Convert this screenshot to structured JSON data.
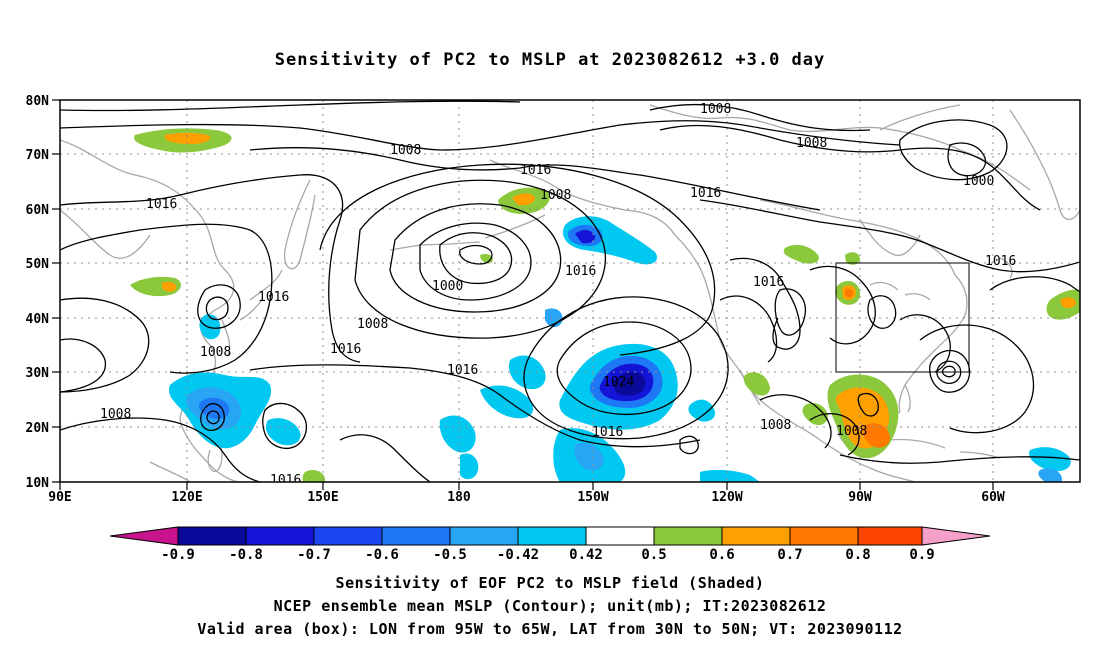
{
  "title": "Sensitivity of PC2 to MSLP at 2023082612 +3.0 day",
  "map": {
    "lat_labels": [
      "80N",
      "70N",
      "60N",
      "50N",
      "40N",
      "30N",
      "20N",
      "10N"
    ],
    "lon_labels": [
      "90E",
      "120E",
      "150E",
      "180",
      "150W",
      "120W",
      "90W",
      "60W"
    ],
    "valid_box": {
      "lon_range": [
        "95W",
        "65W"
      ],
      "lat_range": [
        "30N",
        "50N"
      ]
    },
    "contour_labels": [
      {
        "id": "c1",
        "text": "1008"
      },
      {
        "id": "c2",
        "text": "1008"
      },
      {
        "id": "c3",
        "text": "1016"
      },
      {
        "id": "c4",
        "text": "1008"
      },
      {
        "id": "c5",
        "text": "1016"
      },
      {
        "id": "c6",
        "text": "1008"
      },
      {
        "id": "c7",
        "text": "1000"
      },
      {
        "id": "c8",
        "text": "1016"
      },
      {
        "id": "c9",
        "text": "1016"
      },
      {
        "id": "c10",
        "text": "1016"
      },
      {
        "id": "c11",
        "text": "1000"
      },
      {
        "id": "c12",
        "text": "1008"
      },
      {
        "id": "c13",
        "text": "1016"
      },
      {
        "id": "c14",
        "text": "1008"
      },
      {
        "id": "c15",
        "text": "1016"
      },
      {
        "id": "c16",
        "text": "1016"
      },
      {
        "id": "c17",
        "text": "1024"
      },
      {
        "id": "c18",
        "text": "1016"
      },
      {
        "id": "c19",
        "text": "1008"
      },
      {
        "id": "c20",
        "text": "1008"
      },
      {
        "id": "c21",
        "text": "1008"
      },
      {
        "id": "c22",
        "text": "1016"
      },
      {
        "id": "c23",
        "text": "1016"
      }
    ]
  },
  "colorbar": {
    "labels": [
      "-0.9",
      "-0.8",
      "-0.7",
      "-0.6",
      "-0.5",
      "-0.42",
      "0.42",
      "0.5",
      "0.6",
      "0.7",
      "0.8",
      "0.9"
    ],
    "colors": [
      "#0a0a9a",
      "#1414d6",
      "#1e46f0",
      "#1e78f5",
      "#28a5f5",
      "#00c8f0",
      "#ffffff",
      "#8cc83c",
      "#ffa000",
      "#ff7800",
      "#ff4600",
      "#ff1400"
    ],
    "end_low_color": "#c8148c",
    "end_high_color": "#f5a0c8"
  },
  "captions": {
    "line1": "Sensitivity of EOF PC2 to MSLP field (Shaded)",
    "line2": "NCEP ensemble mean MSLP (Contour); unit(mb); IT:2023082612",
    "line3": "Valid area (box): LON from 95W to 65W, LAT from 30N to 50N; VT: 2023090112"
  }
}
